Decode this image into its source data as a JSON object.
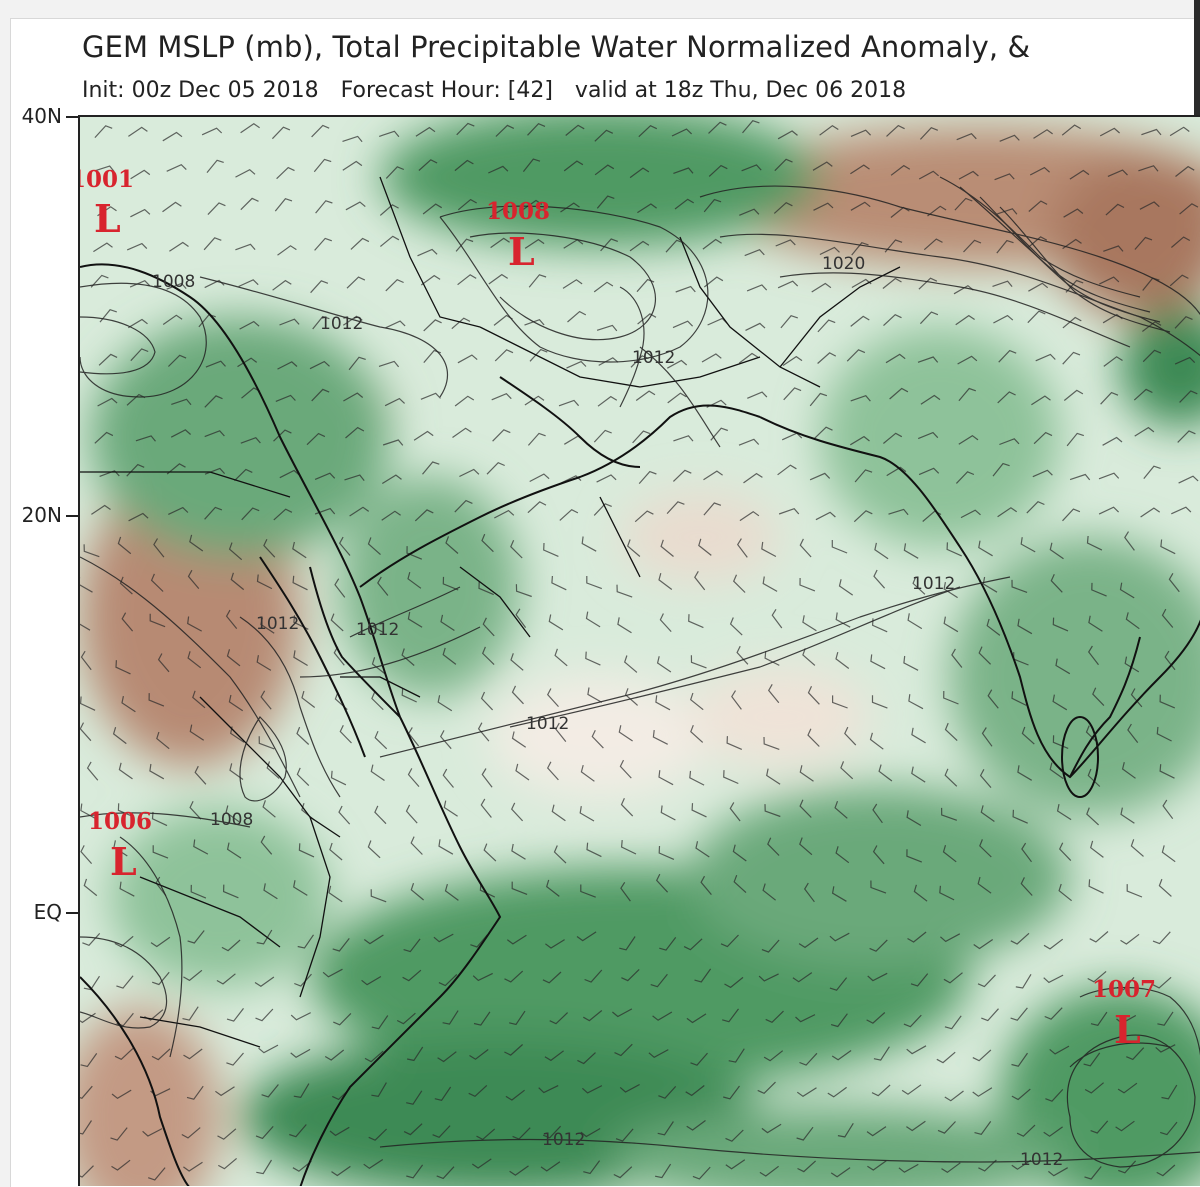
{
  "header": {
    "title": "GEM MSLP (mb), Total Precipitable Water Normalized Anomaly, &",
    "init": "Init: 00z Dec 05 2018",
    "forecast_hour": "Forecast Hour: [42]",
    "valid": "valid at 18z Thu, Dec 06 2018"
  },
  "latitude_labels": [
    "40N",
    "20N",
    "EQ"
  ],
  "lows": [
    {
      "id": "low-1001",
      "pressure": "1001",
      "symbol": "L"
    },
    {
      "id": "low-1008",
      "pressure": "1008",
      "symbol": "L"
    },
    {
      "id": "low-1006",
      "pressure": "1006",
      "symbol": "L"
    },
    {
      "id": "low-1007",
      "pressure": "1007",
      "symbol": "L"
    }
  ],
  "isobar_labels": [
    "1008",
    "1012",
    "1012",
    "1020",
    "1012",
    "1012",
    "1012",
    "1012",
    "1008",
    "1012",
    "1012"
  ],
  "colors": {
    "moist": "#3d8a55",
    "moist_light": "#a9cfae",
    "dry": "#a8775e",
    "low_marker": "#d8242e",
    "contour": "#1a1a1a"
  }
}
